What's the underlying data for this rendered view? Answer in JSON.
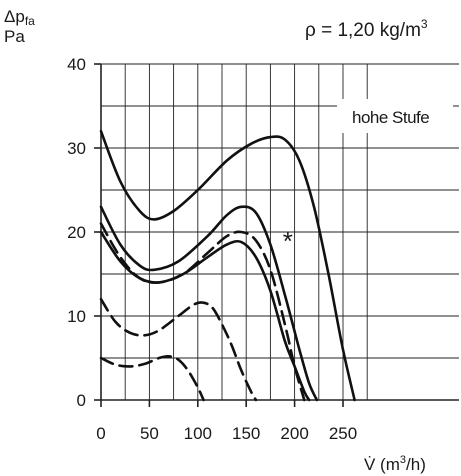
{
  "chart_data": {
    "type": "line",
    "ylabel_symbol": "Δp",
    "ylabel_subscript": "fa",
    "ylabel_unit": "Pa",
    "density_label": "ρ = 1,20 kg/m",
    "density_sup": "3",
    "xlabel": "V̇ (m",
    "xlabel_sup": "3",
    "xlabel_end": "/h)",
    "setting_label": "hohe Stufe",
    "star_marker": {
      "label": "*",
      "x": 193,
      "y": 19.5
    },
    "x_ticks": [
      "0",
      "50",
      "100",
      "150",
      "200",
      "250"
    ],
    "y_ticks": [
      "0",
      "10",
      "20",
      "30",
      "40"
    ],
    "xlim": [
      0,
      290
    ],
    "ylim": [
      0,
      40
    ],
    "grid": true,
    "series": [
      {
        "style": "solid",
        "x": [
          0,
          20,
          40,
          55,
          75,
          100,
          130,
          155,
          175,
          190,
          205,
          220,
          235,
          250,
          262
        ],
        "y": [
          32,
          26,
          22.5,
          21.5,
          22.5,
          25,
          28.5,
          30.5,
          31.3,
          31,
          28.5,
          23,
          15,
          6,
          0
        ]
      },
      {
        "style": "solid",
        "x": [
          0,
          20,
          40,
          55,
          80,
          110,
          130,
          145,
          160,
          175,
          190,
          205,
          215,
          223
        ],
        "y": [
          23,
          18.5,
          16,
          15.5,
          16.5,
          19.5,
          22,
          23,
          22.3,
          18.5,
          12.5,
          6,
          2,
          0
        ]
      },
      {
        "style": "solid",
        "x": [
          0,
          20,
          40,
          60,
          85,
          110,
          130,
          145,
          160,
          175,
          190,
          200,
          210,
          215
        ],
        "y": [
          20,
          16.5,
          14.5,
          14,
          15,
          17,
          18.5,
          18.8,
          17,
          13,
          7,
          4,
          1,
          0
        ]
      },
      {
        "style": "dashed",
        "x": [
          0,
          20,
          40,
          60,
          85,
          110,
          130,
          145,
          160,
          175,
          190,
          200,
          210
        ],
        "y": [
          21,
          17,
          14.5,
          14,
          15,
          17.5,
          19.5,
          20,
          19,
          15.5,
          9,
          4,
          0
        ]
      },
      {
        "style": "dashed",
        "x": [
          0,
          15,
          30,
          45,
          60,
          80,
          95,
          105,
          115,
          125,
          135,
          145,
          155,
          160
        ],
        "y": [
          12,
          9.3,
          8,
          7.7,
          8.3,
          10,
          11.3,
          11.6,
          11,
          9,
          6.5,
          3.5,
          1,
          0
        ]
      },
      {
        "style": "dashed",
        "x": [
          0,
          15,
          30,
          45,
          60,
          70,
          80,
          90,
          100,
          106
        ],
        "y": [
          5,
          4.2,
          4,
          4.3,
          5,
          5.2,
          4.8,
          3.5,
          1.5,
          0
        ]
      }
    ]
  }
}
